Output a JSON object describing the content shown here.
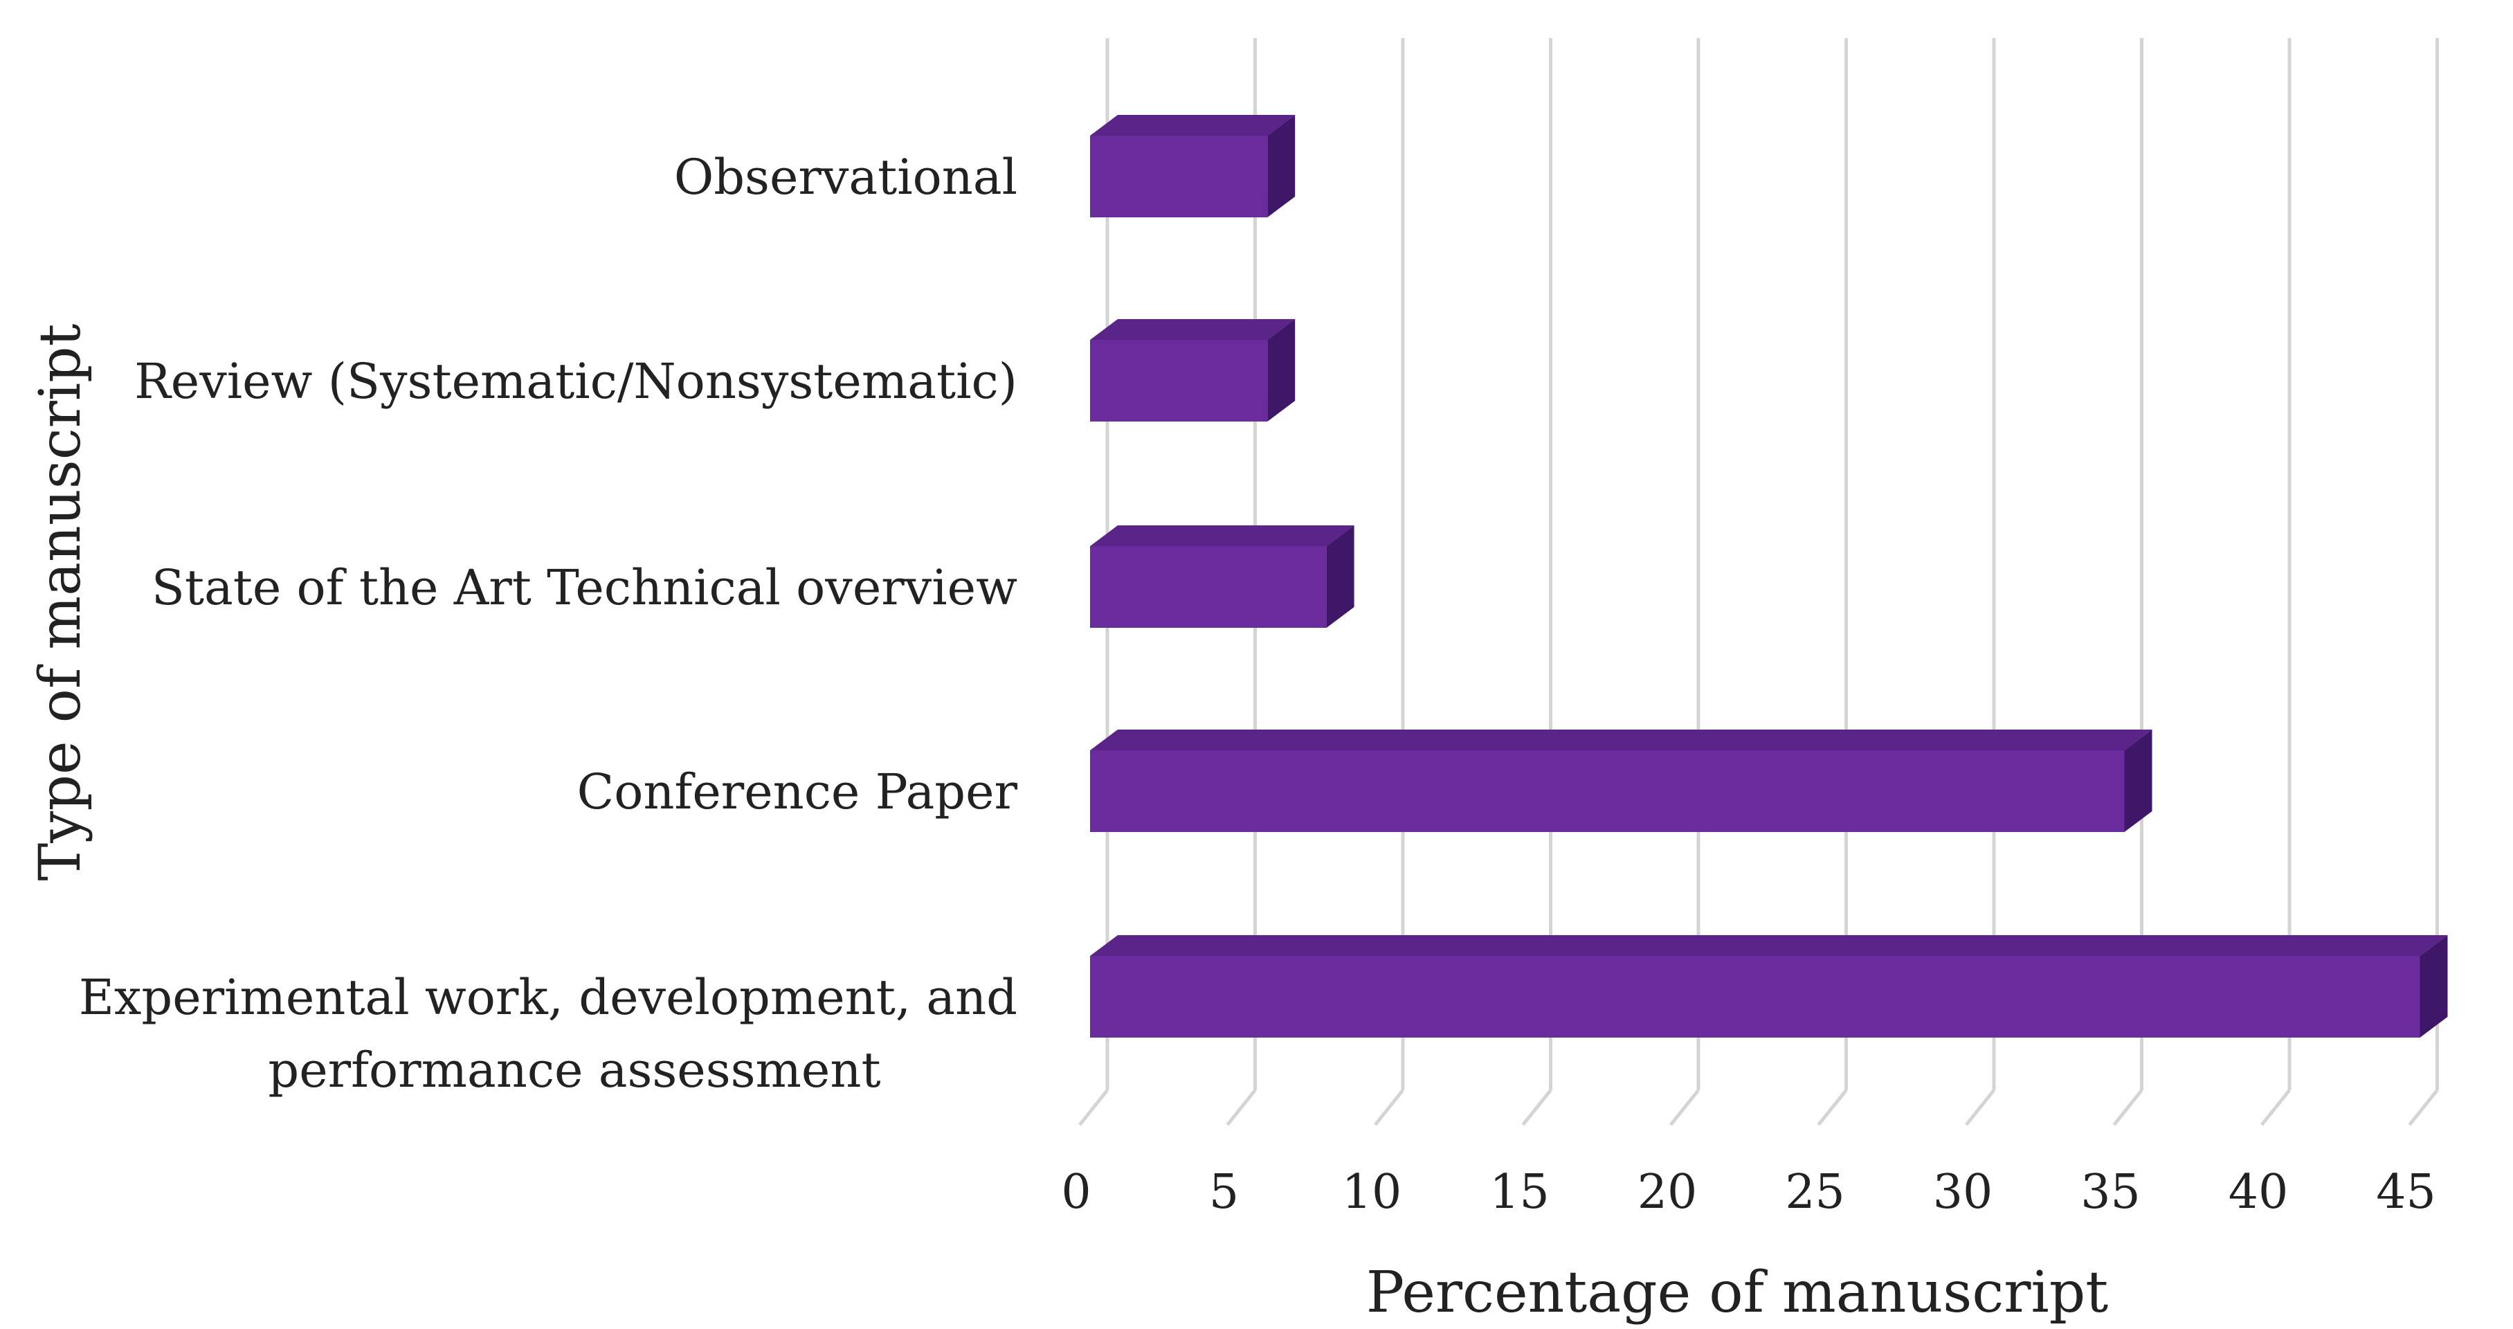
{
  "chart_data": {
    "type": "bar",
    "orientation": "horizontal",
    "style": "3d",
    "categories": [
      [
        "Observational"
      ],
      [
        "Review (Systematic/Nonsystematic)"
      ],
      [
        "State of the Art Technical overview"
      ],
      [
        "Conference Paper"
      ],
      [
        "Experimental work, development, and",
        "performance assessment"
      ]
    ],
    "values": [
      6,
      6,
      8,
      35,
      45
    ],
    "xlabel": "Percentage of manuscript",
    "ylabel": "Type of manuscript",
    "xlim": [
      0,
      45
    ],
    "xticks": [
      "0",
      "5",
      "10",
      "15",
      "20",
      "25",
      "30",
      "35",
      "40",
      "45"
    ],
    "grid": true,
    "legend": "none",
    "colors": {
      "bar_front": "#6a2c9c",
      "bar_top": "#5b2488",
      "bar_side": "#3f1768",
      "gridline": "#d4d4d4",
      "text": "#222222"
    }
  }
}
